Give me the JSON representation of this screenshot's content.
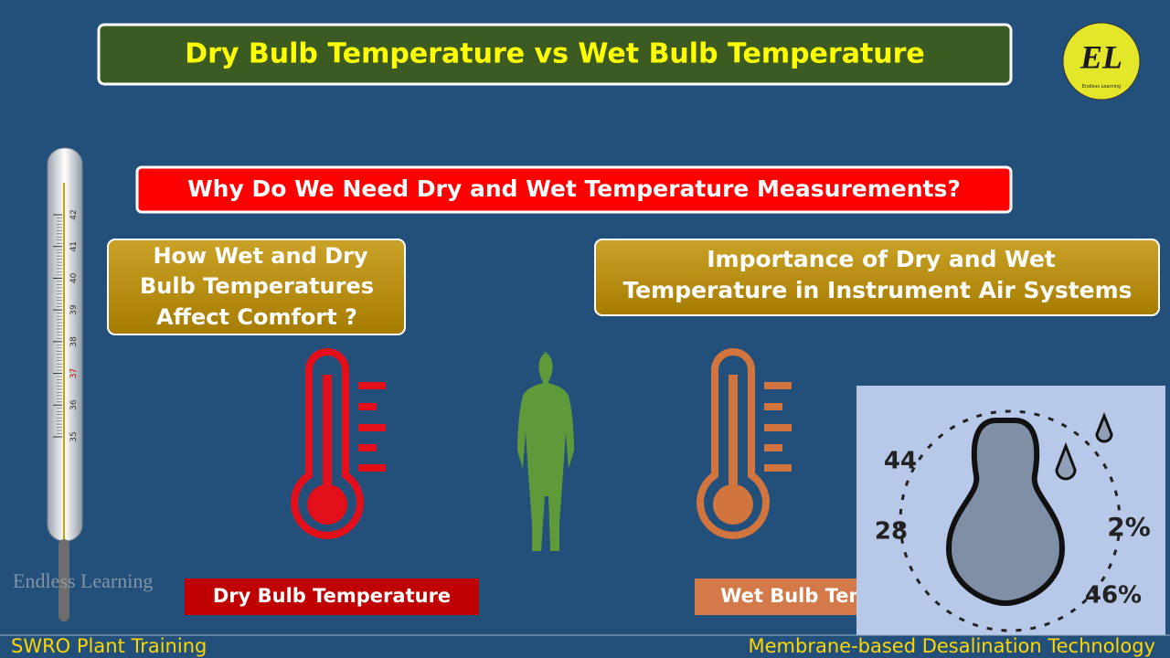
{
  "header": {
    "title": "Dry Bulb Temperature vs Wet  Bulb Temperature",
    "logo": {
      "initials": "EL",
      "caption": "Endless Learning"
    }
  },
  "question": "Why Do We Need Dry and Wet Temperature Measurements?",
  "topics": [
    {
      "lines": [
        "How Wet and Dry",
        "Bulb Temperatures",
        "Affect Comfort ?"
      ]
    },
    {
      "lines": [
        "Importance of Dry and Wet",
        "Temperature in Instrument Air Systems"
      ]
    }
  ],
  "labels": {
    "dry": "Dry Bulb Temperature",
    "wet": "Wet  Bulb Temperature"
  },
  "watermark": "Endless Learning",
  "thermometer_scale": [
    "35",
    "36",
    "37",
    "38",
    "39",
    "40",
    "41",
    "42"
  ],
  "illustration_labels": [
    "44",
    "28",
    "2%",
    "46%"
  ],
  "footer": {
    "left": "SWRO Plant Training",
    "right": "Membrane-based Desalination Technology"
  }
}
